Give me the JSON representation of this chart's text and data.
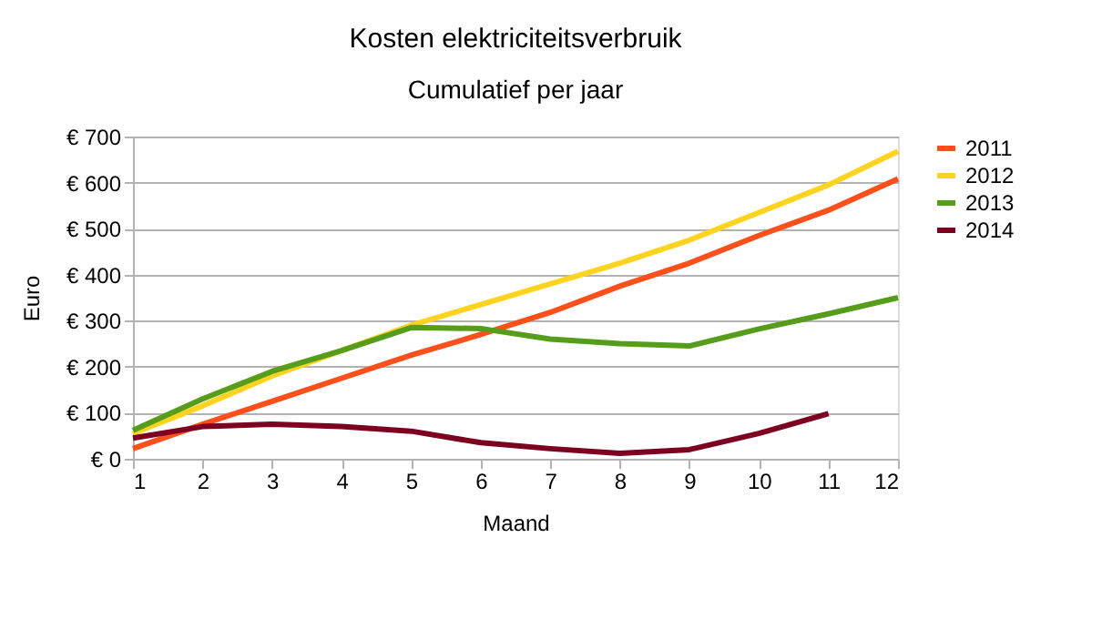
{
  "chart_data": {
    "type": "line",
    "title": "Kosten elektriciteitsverbruik",
    "subtitle": "Cumulatief per jaar",
    "xlabel": "Maand",
    "ylabel": "Euro",
    "x": [
      1,
      2,
      3,
      4,
      5,
      6,
      7,
      8,
      9,
      10,
      11,
      12
    ],
    "xlim": [
      1,
      12
    ],
    "xticks": [
      1,
      2,
      3,
      4,
      5,
      6,
      7,
      8,
      9,
      10,
      11,
      12
    ],
    "ylim": [
      0,
      700
    ],
    "yticks": [
      {
        "value": 0,
        "label": "€ 0"
      },
      {
        "value": 100,
        "label": "€ 100"
      },
      {
        "value": 200,
        "label": "€ 200"
      },
      {
        "value": 300,
        "label": "€ 300"
      },
      {
        "value": 400,
        "label": "€ 400"
      },
      {
        "value": 500,
        "label": "€ 500"
      },
      {
        "value": 600,
        "label": "€ 600"
      },
      {
        "value": 700,
        "label": "€ 700"
      }
    ],
    "grid": "y",
    "legend": "right",
    "marker": "none",
    "line_style": "solid",
    "series": [
      {
        "name": "2011",
        "color": "#ff4f1a",
        "values": [
          22,
          75,
          125,
          175,
          225,
          270,
          318,
          375,
          425,
          485,
          540,
          608
        ]
      },
      {
        "name": "2012",
        "color": "#ffd320",
        "values": [
          55,
          115,
          180,
          235,
          290,
          335,
          380,
          425,
          475,
          535,
          595,
          668
        ]
      },
      {
        "name": "2013",
        "color": "#579d1c",
        "values": [
          62,
          130,
          190,
          235,
          285,
          283,
          260,
          250,
          245,
          282,
          315,
          350
        ]
      },
      {
        "name": "2014",
        "color": "#7e0021",
        "values": [
          45,
          70,
          75,
          70,
          60,
          35,
          22,
          12,
          20,
          55,
          98,
          null
        ]
      }
    ]
  }
}
